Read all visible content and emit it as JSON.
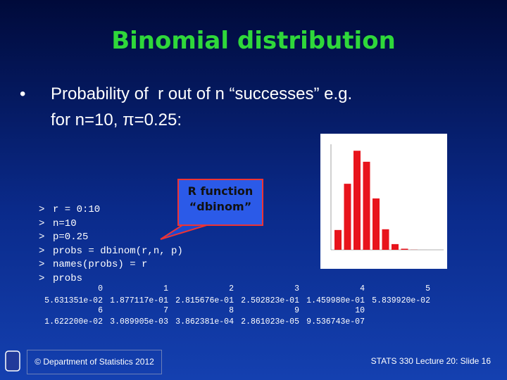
{
  "header": {
    "title": "Binomial distribution"
  },
  "bullet": {
    "line1": "Probability of  r out of n “successes” e.g.",
    "line2": "for n=10, π=0.25:"
  },
  "callout": {
    "line1": "R function",
    "line2": "“dbinom”"
  },
  "code": {
    "prompt": ">",
    "lines": [
      "r = 0:10",
      "n=10",
      "p=0.25",
      "probs = dbinom(r,n, p)",
      "names(probs) = r",
      "probs"
    ]
  },
  "output": {
    "rows": [
      [
        "0",
        "1",
        "2",
        "3",
        "4",
        "5"
      ],
      [
        "5.631351e-02",
        "1.877117e-01",
        "2.815676e-01",
        "2.502823e-01",
        "1.459980e-01",
        "5.839920e-02"
      ],
      [
        "6",
        "7",
        "8",
        "9",
        "10"
      ],
      [
        "1.622200e-02",
        "3.089905e-03",
        "3.862381e-04",
        "2.861023e-05",
        "9.536743e-07"
      ]
    ]
  },
  "footer": {
    "left": "© Department of Statistics 2012",
    "right": "STATS 330 Lecture 20: Slide 16"
  }
}
